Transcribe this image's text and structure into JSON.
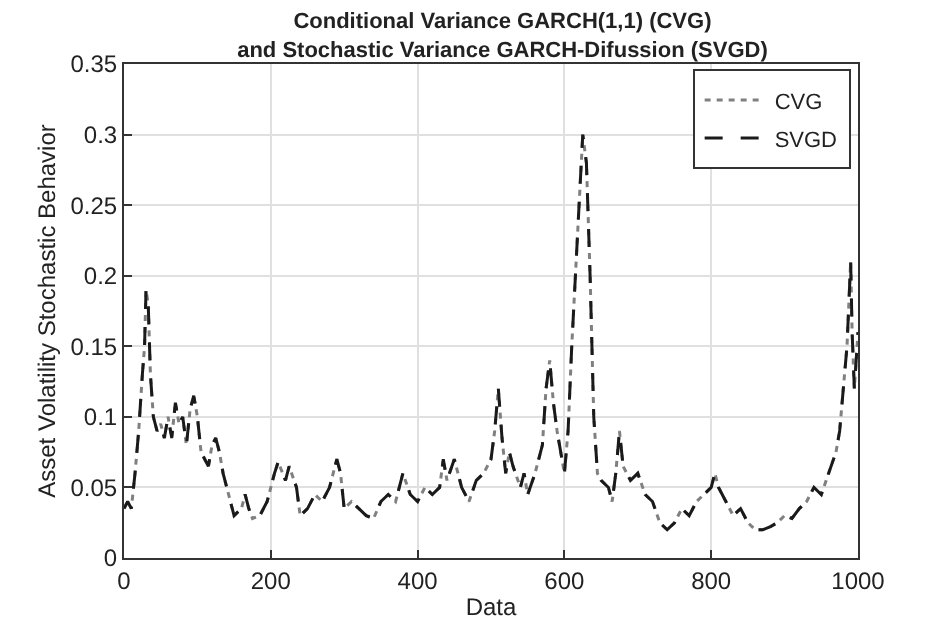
{
  "chart_data": {
    "type": "line",
    "title": "Conditional Variance GARCH(1,1) (CVG)\nand Stochastic Variance GARCH-Difussion (SVGD)",
    "xlabel": "Data",
    "ylabel": "Asset Volatility Stochastic Behavior",
    "x": [
      0,
      5,
      10,
      15,
      20,
      25,
      28,
      30,
      33,
      36,
      40,
      45,
      50,
      55,
      60,
      65,
      70,
      75,
      80,
      85,
      90,
      95,
      100,
      105,
      110,
      115,
      120,
      125,
      130,
      135,
      140,
      150,
      160,
      165,
      170,
      175,
      185,
      195,
      205,
      210,
      220,
      225,
      235,
      240,
      250,
      260,
      270,
      280,
      290,
      295,
      300,
      310,
      320,
      330,
      340,
      350,
      360,
      370,
      380,
      390,
      400,
      410,
      420,
      430,
      435,
      440,
      450,
      460,
      470,
      480,
      490,
      500,
      505,
      510,
      515,
      520,
      525,
      530,
      540,
      545,
      550,
      560,
      570,
      575,
      580,
      585,
      590,
      600,
      605,
      610,
      615,
      620,
      625,
      630,
      635,
      640,
      645,
      650,
      660,
      665,
      670,
      675,
      680,
      690,
      700,
      710,
      720,
      730,
      740,
      750,
      760,
      770,
      780,
      790,
      800,
      805,
      810,
      820,
      830,
      840,
      850,
      860,
      870,
      880,
      890,
      900,
      910,
      920,
      930,
      940,
      950,
      960,
      970,
      975,
      980,
      985,
      990,
      992,
      995,
      1000
    ],
    "series": [
      {
        "name": "CVG",
        "color": "#808080",
        "line_style": "dotted",
        "values": [
          0.035,
          0.04,
          0.035,
          0.06,
          0.09,
          0.13,
          0.15,
          0.19,
          0.18,
          0.13,
          0.1,
          0.09,
          0.095,
          0.085,
          0.1,
          0.085,
          0.11,
          0.095,
          0.1,
          0.08,
          0.105,
          0.115,
          0.1,
          0.075,
          0.07,
          0.065,
          0.08,
          0.085,
          0.075,
          0.06,
          0.05,
          0.03,
          0.035,
          0.045,
          0.035,
          0.028,
          0.03,
          0.04,
          0.06,
          0.068,
          0.055,
          0.065,
          0.05,
          0.03,
          0.035,
          0.045,
          0.04,
          0.05,
          0.07,
          0.06,
          0.035,
          0.04,
          0.035,
          0.03,
          0.028,
          0.04,
          0.045,
          0.04,
          0.06,
          0.045,
          0.04,
          0.05,
          0.045,
          0.05,
          0.07,
          0.055,
          0.07,
          0.05,
          0.04,
          0.055,
          0.06,
          0.07,
          0.09,
          0.12,
          0.085,
          0.06,
          0.075,
          0.065,
          0.05,
          0.06,
          0.045,
          0.06,
          0.08,
          0.12,
          0.14,
          0.11,
          0.09,
          0.06,
          0.09,
          0.15,
          0.2,
          0.25,
          0.3,
          0.28,
          0.2,
          0.1,
          0.06,
          0.055,
          0.05,
          0.04,
          0.06,
          0.09,
          0.065,
          0.055,
          0.06,
          0.045,
          0.04,
          0.025,
          0.02,
          0.025,
          0.035,
          0.03,
          0.04,
          0.045,
          0.05,
          0.06,
          0.05,
          0.04,
          0.03,
          0.035,
          0.025,
          0.02,
          0.02,
          0.022,
          0.025,
          0.03,
          0.028,
          0.035,
          0.04,
          0.05,
          0.045,
          0.06,
          0.075,
          0.09,
          0.12,
          0.15,
          0.21,
          0.16,
          0.12,
          0.16
        ]
      },
      {
        "name": "SVGD",
        "color": "#1a1a1a",
        "line_style": "dashed",
        "values": [
          0.035,
          0.04,
          0.035,
          0.06,
          0.09,
          0.13,
          0.15,
          0.19,
          0.18,
          0.13,
          0.1,
          0.09,
          0.095,
          0.085,
          0.1,
          0.085,
          0.11,
          0.095,
          0.1,
          0.08,
          0.105,
          0.115,
          0.1,
          0.075,
          0.07,
          0.065,
          0.08,
          0.085,
          0.075,
          0.06,
          0.05,
          0.03,
          0.035,
          0.045,
          0.035,
          0.028,
          0.03,
          0.04,
          0.06,
          0.068,
          0.055,
          0.065,
          0.05,
          0.03,
          0.035,
          0.045,
          0.04,
          0.05,
          0.07,
          0.06,
          0.035,
          0.04,
          0.035,
          0.03,
          0.028,
          0.04,
          0.045,
          0.04,
          0.06,
          0.045,
          0.04,
          0.05,
          0.045,
          0.05,
          0.07,
          0.055,
          0.07,
          0.05,
          0.04,
          0.055,
          0.06,
          0.07,
          0.09,
          0.12,
          0.085,
          0.06,
          0.075,
          0.065,
          0.05,
          0.06,
          0.045,
          0.06,
          0.08,
          0.12,
          0.14,
          0.11,
          0.09,
          0.06,
          0.09,
          0.15,
          0.2,
          0.25,
          0.3,
          0.28,
          0.2,
          0.1,
          0.06,
          0.055,
          0.05,
          0.04,
          0.06,
          0.09,
          0.065,
          0.055,
          0.06,
          0.045,
          0.04,
          0.025,
          0.02,
          0.025,
          0.035,
          0.03,
          0.04,
          0.045,
          0.05,
          0.06,
          0.05,
          0.04,
          0.03,
          0.035,
          0.025,
          0.02,
          0.02,
          0.022,
          0.025,
          0.03,
          0.028,
          0.035,
          0.04,
          0.05,
          0.045,
          0.06,
          0.075,
          0.09,
          0.12,
          0.15,
          0.21,
          0.16,
          0.12,
          0.16
        ]
      }
    ],
    "xlim": [
      0,
      1000
    ],
    "xticks": [
      0,
      200,
      400,
      600,
      800,
      1000
    ],
    "ylim": [
      0,
      0.35
    ],
    "yticks": [
      0,
      0.05,
      0.1,
      0.15,
      0.2,
      0.25,
      0.3,
      0.35
    ],
    "grid": true,
    "legend": "top right",
    "marker": "none"
  }
}
